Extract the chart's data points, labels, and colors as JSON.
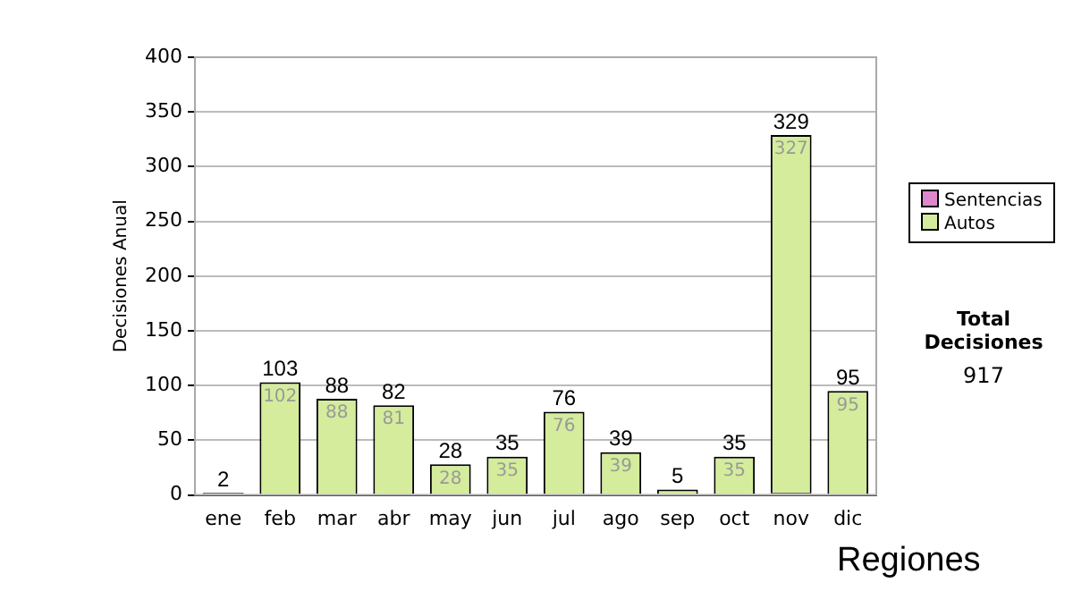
{
  "chart_data": {
    "type": "bar",
    "stacked": true,
    "ylabel": "Decisiones Anual",
    "categories": [
      "ene",
      "feb",
      "mar",
      "abr",
      "may",
      "jun",
      "jul",
      "ago",
      "sep",
      "oct",
      "nov",
      "dic"
    ],
    "series": [
      {
        "name": "Sentencias",
        "color": "#dd88cc",
        "values": [
          2,
          1,
          0,
          1,
          0,
          0,
          0,
          0,
          0,
          0,
          2,
          0
        ]
      },
      {
        "name": "Autos",
        "color": "#d4ec9c",
        "values": [
          0,
          102,
          88,
          81,
          28,
          35,
          76,
          39,
          5,
          35,
          327,
          95
        ],
        "value_labels": [
          null,
          "102",
          "88",
          "81",
          "28",
          "35",
          "76",
          "39",
          null,
          "35",
          "327",
          "95"
        ]
      }
    ],
    "totals": [
      "2",
      "103",
      "88",
      "82",
      "28",
      "35",
      "76",
      "39",
      "5",
      "35",
      "329",
      "95"
    ],
    "ylim": [
      0,
      400
    ],
    "yticks": [
      0,
      50,
      100,
      150,
      200,
      250,
      300,
      350,
      400
    ],
    "grid": "y",
    "legend": "right",
    "annotations": [
      "Total Decisiones",
      "917",
      "Regiones"
    ]
  }
}
